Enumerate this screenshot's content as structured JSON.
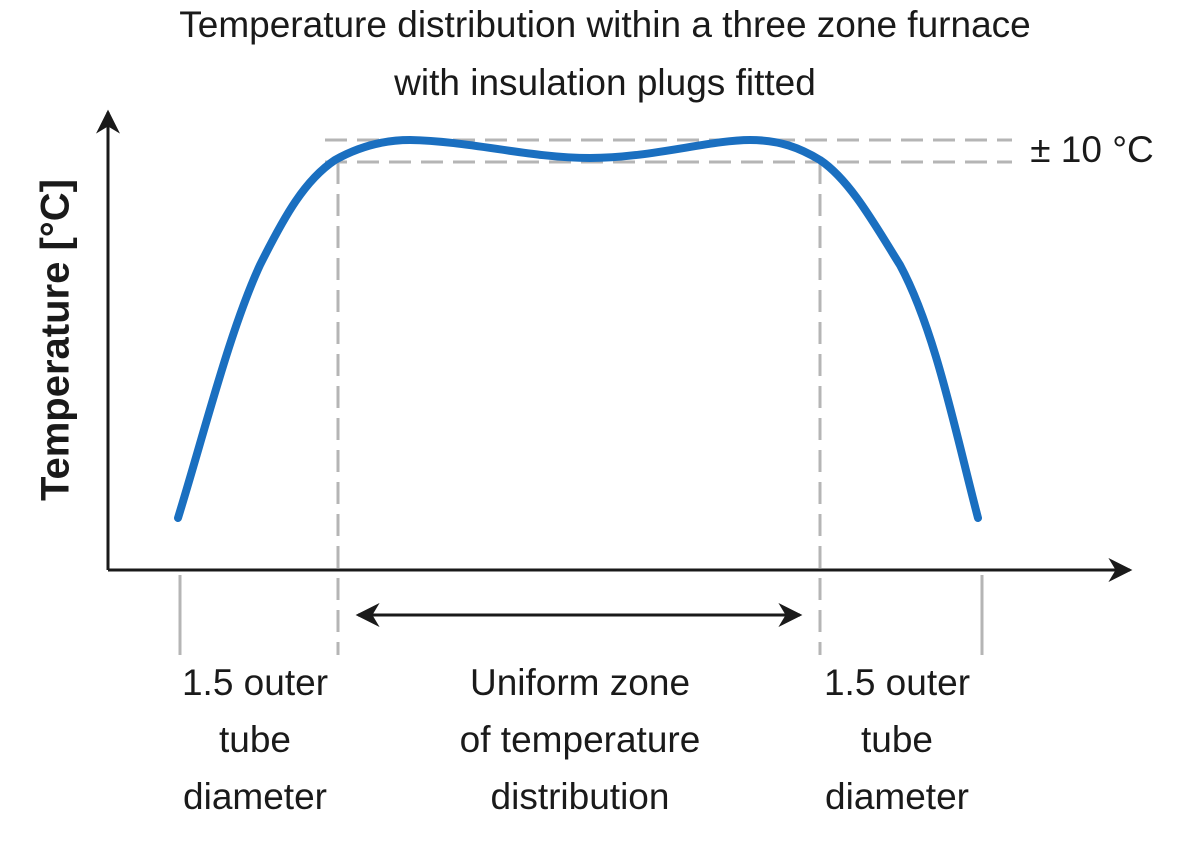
{
  "title": {
    "lines": [
      "Temperature distribution within a three zone furnace",
      "with insulation plugs fitted"
    ]
  },
  "y_axis": {
    "label": "Temperature [°C]"
  },
  "tolerance": {
    "label": "± 10 °C"
  },
  "zones": [
    {
      "lines": [
        "1.5 outer",
        "tube",
        "diameter"
      ]
    },
    {
      "lines": [
        "Uniform zone",
        "of temperature",
        "distribution"
      ]
    },
    {
      "lines": [
        "1.5 outer",
        "tube",
        "diameter"
      ]
    }
  ]
}
